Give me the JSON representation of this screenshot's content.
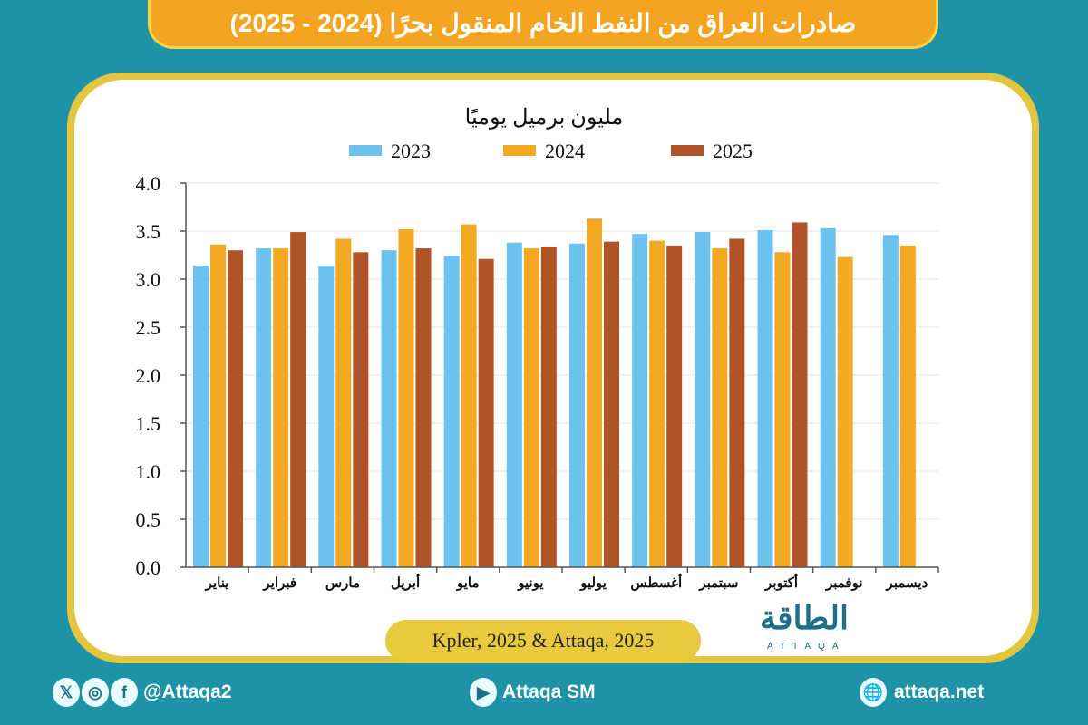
{
  "header": {
    "title": "صادرات العراق من النفط الخام المنقول بحرًا (2024 - 2025)"
  },
  "chart_data": {
    "type": "bar",
    "ylabel": "مليون برميل يوميًا",
    "categories": [
      "يناير",
      "فبراير",
      "مارس",
      "أبريل",
      "مايو",
      "يونيو",
      "يوليو",
      "أغسطس",
      "سبتمبر",
      "أكتوبر",
      "نوفمبر",
      "ديسمبر"
    ],
    "series": [
      {
        "name": "2023",
        "color": "#6cc3ef",
        "values": [
          3.14,
          3.32,
          3.14,
          3.3,
          3.24,
          3.38,
          3.37,
          3.47,
          3.49,
          3.51,
          3.53,
          3.46
        ]
      },
      {
        "name": "2024",
        "color": "#f3a823",
        "values": [
          3.36,
          3.32,
          3.42,
          3.52,
          3.57,
          3.32,
          3.63,
          3.4,
          3.32,
          3.28,
          3.23,
          3.35
        ]
      },
      {
        "name": "2025",
        "color": "#b05428",
        "values": [
          3.3,
          3.49,
          3.28,
          3.32,
          3.21,
          3.34,
          3.39,
          3.35,
          3.42,
          3.59,
          null,
          null
        ]
      }
    ],
    "ylim": [
      0,
      4.0
    ],
    "yticks": [
      "0.0",
      "0.5",
      "1.0",
      "1.5",
      "2.0",
      "2.5",
      "3.0",
      "3.5",
      "4.0"
    ],
    "grid": true,
    "legend": "top"
  },
  "source": "Kpler, 2025 & Attaqa, 2025",
  "logo": {
    "text": "الطاقة",
    "sub": "ATTAQA"
  },
  "footer": {
    "social_handle": "@Attaqa2",
    "youtube": "Attaqa SM",
    "website": "attaqa.net"
  }
}
